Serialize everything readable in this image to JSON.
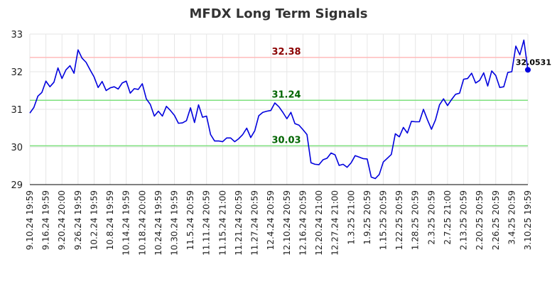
{
  "chart_data": {
    "type": "line",
    "title": "MFDX Long Term Signals",
    "xlabel": "",
    "ylabel": "",
    "ylim": [
      29,
      33
    ],
    "y_ticks": [
      29,
      30,
      31,
      32,
      33
    ],
    "grid": true,
    "x_tick_labels": [
      "9.10.24 19:59",
      "9.16.24 19:59",
      "9.20.24 20:00",
      "9.26.24 19:59",
      "10.2.24 19:59",
      "10.8.24 19:59",
      "10.14.24 19:59",
      "10.18.24 20:00",
      "10.24.24 19:59",
      "10.30.24 19:59",
      "11.5.24 20:59",
      "11.11.24 20:59",
      "11.15.24 21:00",
      "11.21.24 20:59",
      "11.27.24 20:59",
      "12.4.24 20:59",
      "12.10.24 20:59",
      "12.16.24 20:59",
      "12.20.24 21:00",
      "12.27.24 21:00",
      "1.3.25 21:00",
      "1.9.25 20:59",
      "1.15.25 20:59",
      "1.22.25 20:59",
      "1.28.25 20:59",
      "2.3.25 20:59",
      "2.7.25 21:00",
      "2.13.25 20:59",
      "2.20.25 20:59",
      "2.26.25 20:59",
      "3.4.25 20:59",
      "3.10.25 19:59"
    ],
    "reference_lines": [
      {
        "value": 32.38,
        "label": "32.38",
        "color": "#ffbbbb",
        "label_color": "#8b0000"
      },
      {
        "value": 31.24,
        "label": "31.24",
        "color": "#7ee07e",
        "label_color": "#006400"
      },
      {
        "value": 30.03,
        "label": "30.03",
        "color": "#7ee07e",
        "label_color": "#006400"
      }
    ],
    "last_value_label": "32.0531",
    "series": [
      {
        "color": "#0000dd",
        "values": [
          30.9,
          31.05,
          31.35,
          31.45,
          31.75,
          31.6,
          31.72,
          32.1,
          31.82,
          32.05,
          32.16,
          31.96,
          32.58,
          32.36,
          32.25,
          32.05,
          31.86,
          31.58,
          31.74,
          31.5,
          31.57,
          31.6,
          31.54,
          31.7,
          31.75,
          31.43,
          31.55,
          31.53,
          31.68,
          31.28,
          31.13,
          30.82,
          30.95,
          30.82,
          31.08,
          30.97,
          30.84,
          30.63,
          30.64,
          30.7,
          31.04,
          30.65,
          31.12,
          30.79,
          30.82,
          30.33,
          30.16,
          30.16,
          30.14,
          30.24,
          30.24,
          30.14,
          30.22,
          30.33,
          30.5,
          30.25,
          30.43,
          30.83,
          30.92,
          30.95,
          30.97,
          31.17,
          31.07,
          30.92,
          30.75,
          30.92,
          30.62,
          30.58,
          30.46,
          30.33,
          29.58,
          29.54,
          29.53,
          29.66,
          29.7,
          29.84,
          29.79,
          29.51,
          29.54,
          29.46,
          29.58,
          29.77,
          29.73,
          29.69,
          29.68,
          29.2,
          29.16,
          29.27,
          29.6,
          29.7,
          29.8,
          30.35,
          30.27,
          30.52,
          30.37,
          30.68,
          30.67,
          30.67,
          31.0,
          30.72,
          30.47,
          30.72,
          31.12,
          31.28,
          31.1,
          31.26,
          31.4,
          31.43,
          31.8,
          31.82,
          31.96,
          31.7,
          31.77,
          31.97,
          31.62,
          32.02,
          31.9,
          31.58,
          31.6,
          31.98,
          32.0,
          32.68,
          32.45,
          32.84,
          32.05
        ]
      }
    ]
  }
}
